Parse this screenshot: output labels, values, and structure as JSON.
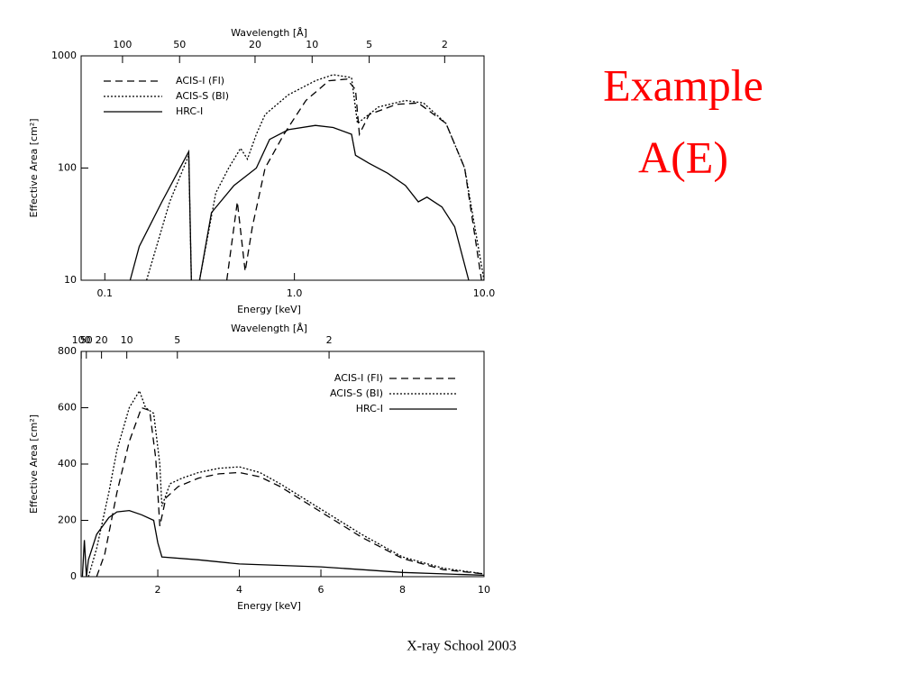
{
  "slide": {
    "title": [
      "Example",
      "A(E)"
    ],
    "footer": "X-ray School 2003"
  },
  "chart_data": [
    {
      "type": "line",
      "xlabel": "Energy [keV]",
      "ylabel": "Effective Area [cm²]",
      "x2label": "Wavelength [Å]",
      "xscale": "log",
      "yscale": "log",
      "x2scale": "log",
      "xlim": [
        0.075,
        10
      ],
      "ylim": [
        10,
        1000
      ],
      "x2lim": [
        165.3,
        1.24
      ],
      "xticks": [
        0.1,
        {
          "value": 1,
          "label": "1.0"
        },
        {
          "value": 10,
          "label": "10.0"
        }
      ],
      "yticks": [
        10,
        100,
        1000
      ],
      "x2ticks": [
        100,
        50,
        20,
        10,
        5,
        2
      ],
      "legend": "upper left",
      "series": [
        {
          "name": "ACIS-I (FI)",
          "color": "#000000",
          "style": "dashed",
          "x": [
            0.44,
            0.5,
            0.55,
            0.6,
            0.7,
            0.88,
            1.15,
            1.52,
            1.89,
            2.1,
            2.2,
            2.48,
            3.45,
            4.5,
            6.3,
            7.9,
            9.7
          ],
          "values": [
            10,
            50,
            12,
            30,
            100,
            200,
            400,
            600,
            620,
            500,
            200,
            300,
            370,
            380,
            250,
            100,
            10
          ]
        },
        {
          "name": "ACIS-S (BI)",
          "color": "#000000",
          "style": "dotted",
          "x": [
            0.166,
            0.22,
            0.277,
            0.286,
            null,
            0.316,
            0.385,
            0.45,
            0.52,
            0.565,
            0.63,
            0.7,
            0.93,
            1.29,
            1.6,
            2.0,
            2.15,
            2.77,
            3.85,
            4.8,
            6.3,
            7.9,
            10
          ],
          "values": [
            10,
            50,
            130,
            10,
            null,
            10,
            60,
            100,
            150,
            120,
            200,
            300,
            450,
            600,
            680,
            640,
            250,
            350,
            400,
            380,
            250,
            100,
            10
          ]
        },
        {
          "name": "HRC-I",
          "color": "#000000",
          "style": "solid",
          "x": [
            0.136,
            0.152,
            0.2,
            0.277,
            0.286,
            null,
            0.316,
            0.365,
            0.48,
            0.63,
            0.74,
            0.93,
            1.29,
            1.6,
            2.0,
            2.1,
            2.48,
            3.1,
            3.85,
            4.5,
            5.0,
            6.0,
            7.0,
            8.3
          ],
          "values": [
            10,
            20,
            50,
            140,
            10,
            null,
            10,
            40,
            70,
            100,
            180,
            220,
            240,
            230,
            200,
            130,
            110,
            90,
            70,
            50,
            55,
            45,
            30,
            10
          ]
        }
      ]
    },
    {
      "type": "line",
      "xlabel": "Energy [keV]",
      "ylabel": "Effective Area [cm²]",
      "x2label": "Wavelength [Å]",
      "xscale": "linear",
      "yscale": "linear",
      "x2scale": "reciprocal",
      "xlim": [
        0.12,
        10
      ],
      "ylim": [
        0,
        800
      ],
      "x2lim": [
        103.3,
        1.24
      ],
      "xticks": [
        2,
        4,
        6,
        8,
        10
      ],
      "yticks": [
        0,
        200,
        400,
        600,
        800
      ],
      "x2ticks": [
        100,
        50,
        20,
        10,
        5,
        2
      ],
      "legend": "upper right",
      "series": [
        {
          "name": "ACIS-I (FI)",
          "color": "#000000",
          "style": "dashed",
          "x": [
            0.5,
            0.7,
            1.0,
            1.3,
            1.6,
            1.8,
            1.95,
            2.05,
            2.2,
            2.5,
            3.0,
            3.5,
            4.0,
            4.5,
            5.0,
            6.0,
            7.0,
            8.0,
            9.0,
            10.0
          ],
          "values": [
            0,
            80,
            300,
            480,
            600,
            590,
            420,
            180,
            280,
            320,
            350,
            365,
            370,
            355,
            320,
            230,
            140,
            65,
            25,
            10
          ]
        },
        {
          "name": "ACIS-S (BI)",
          "color": "#000000",
          "style": "dotted",
          "x": [
            0.3,
            0.5,
            0.8,
            1.0,
            1.3,
            1.55,
            1.7,
            1.9,
            2.05,
            2.1,
            2.3,
            2.6,
            3.0,
            3.5,
            4.0,
            4.5,
            5.0,
            6.0,
            7.0,
            8.0,
            9.0,
            10.0
          ],
          "values": [
            0,
            100,
            300,
            450,
            600,
            660,
            600,
            580,
            400,
            250,
            330,
            350,
            370,
            385,
            390,
            370,
            330,
            240,
            150,
            70,
            30,
            10
          ]
        },
        {
          "name": "HRC-I",
          "color": "#000000",
          "style": "solid",
          "x": [
            0.15,
            0.2,
            0.25,
            0.3,
            0.5,
            0.8,
            1.0,
            1.3,
            1.6,
            1.9,
            2.0,
            2.1,
            3.0,
            4.0,
            5.0,
            6.0,
            7.0,
            8.0,
            9.0,
            10.0
          ],
          "values": [
            0,
            130,
            0,
            60,
            150,
            210,
            230,
            235,
            220,
            200,
            120,
            70,
            60,
            45,
            40,
            35,
            25,
            15,
            10,
            5
          ]
        }
      ]
    }
  ]
}
